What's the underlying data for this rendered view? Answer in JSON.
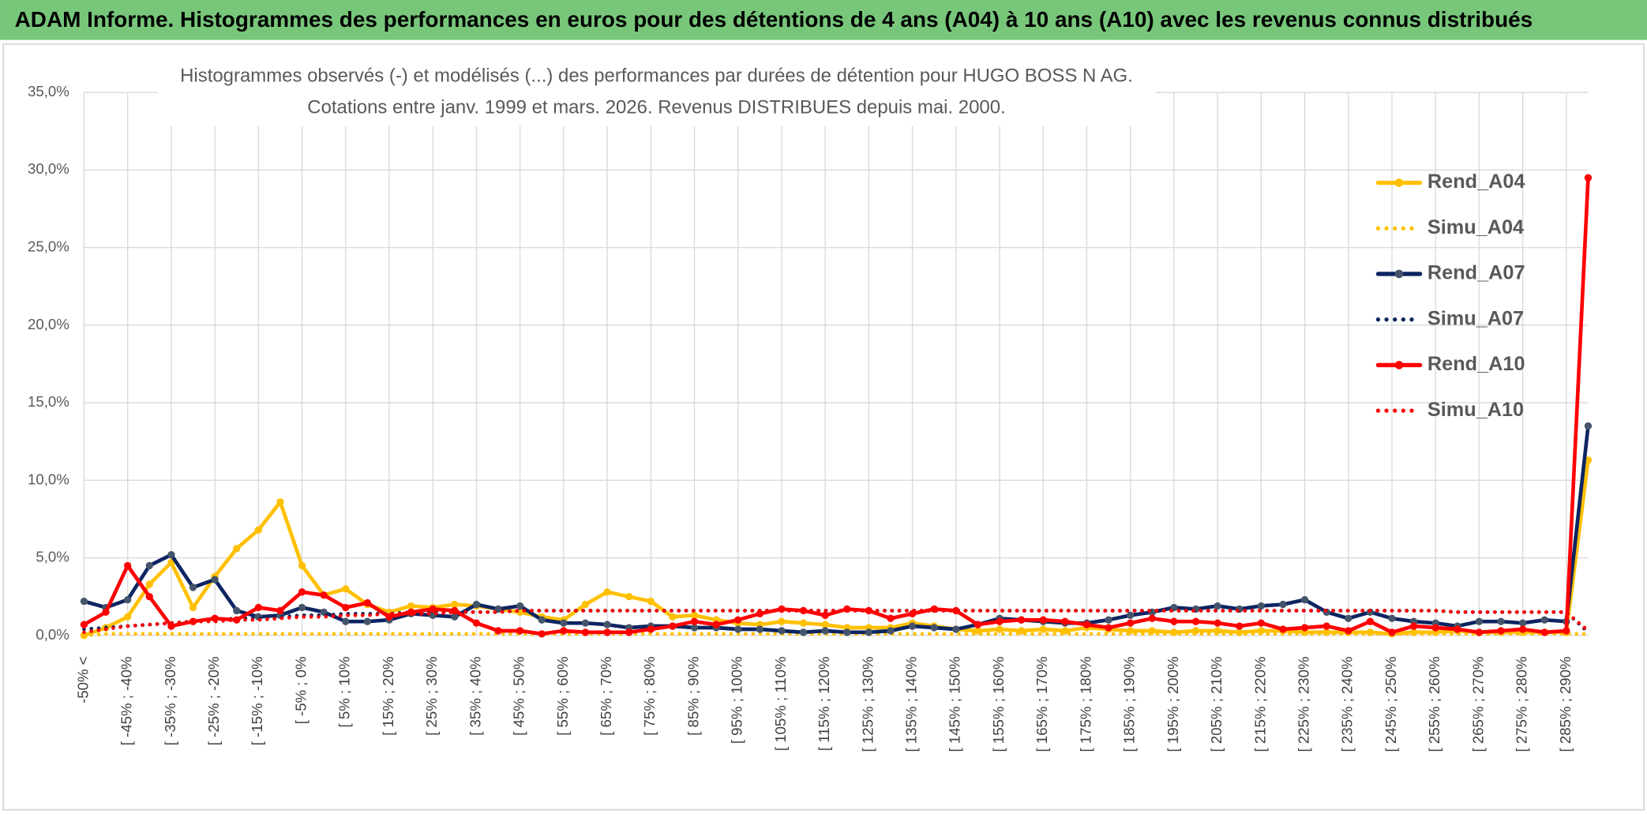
{
  "header": {
    "title": "ADAM Informe. Histogrammes des performances en euros pour des détentions de 4 ans (A04) à 10 ans (A10) avec les revenus connus distribués"
  },
  "chart_data": {
    "type": "line",
    "title": "Histogrammes observés (-) et modélisés (...) des performances par durées de détention pour HUGO BOSS N AG.",
    "subtitle": "Cotations entre janv. 1999 et mars. 2026. Revenus DISTRIBUES depuis mai. 2000.",
    "categories": [
      "-50% <",
      null,
      "[ -45% ; -40%",
      null,
      "[ -35% ; -30%",
      null,
      "[ -25% ; -20%",
      null,
      "[ -15% ; -10%",
      null,
      "[ -5% ; 0%",
      null,
      "[ 5% ; 10%",
      null,
      "[ 15% ; 20%",
      null,
      "[ 25% ; 30%",
      null,
      "[ 35% ; 40%",
      null,
      "[ 45% ; 50%",
      null,
      "[ 55% ; 60%",
      null,
      "[ 65% ; 70%",
      null,
      "[ 75% ; 80%",
      null,
      "[ 85% ; 90%",
      null,
      "[ 95% ; 100%",
      null,
      "[ 105% ; 110%",
      null,
      "[ 115% ; 120%",
      null,
      "[ 125% ; 130%",
      null,
      "[ 135% ; 140%",
      null,
      "[ 145% ; 150%",
      null,
      "[ 155% ; 160%",
      null,
      "[ 165% ; 170%",
      null,
      "[ 175% ; 180%",
      null,
      "[ 185% ; 190%",
      null,
      "[ 195% ; 200%",
      null,
      "[ 205% ; 210%",
      null,
      "[ 215% ; 220%",
      null,
      "[ 225% ; 230%",
      null,
      "[ 235% ; 240%",
      null,
      "[ 245% ; 250%",
      null,
      "[ 255% ; 260%",
      null,
      "[ 265% ; 270%",
      null,
      "[ 275% ; 280%",
      null,
      "[ 285% ; 290%",
      null
    ],
    "ylim": [
      0,
      35
    ],
    "yticks": [
      {
        "value": 0,
        "label": "0,0%"
      },
      {
        "value": 5,
        "label": "5,0%"
      },
      {
        "value": 10,
        "label": "10,0%"
      },
      {
        "value": 15,
        "label": "15,0%"
      },
      {
        "value": 20,
        "label": "20,0%"
      },
      {
        "value": 25,
        "label": "25,0%"
      },
      {
        "value": 30,
        "label": "30,0%"
      },
      {
        "value": 35,
        "label": "35,0%"
      }
    ],
    "grid": true,
    "legend": "right",
    "series": [
      {
        "name": "Rend_A04",
        "color": "#ffc000",
        "style": "solid",
        "values": [
          0.0,
          0.5,
          1.2,
          3.3,
          4.7,
          1.8,
          3.8,
          5.6,
          6.8,
          8.6,
          4.5,
          2.6,
          3.0,
          2.0,
          1.5,
          1.9,
          1.8,
          2.0,
          1.9,
          1.7,
          1.5,
          1.2,
          1.0,
          2.0,
          2.8,
          2.5,
          2.2,
          1.2,
          1.3,
          1.0,
          0.8,
          0.7,
          0.9,
          0.8,
          0.7,
          0.5,
          0.5,
          0.5,
          0.8,
          0.6,
          0.4,
          0.3,
          0.4,
          0.3,
          0.4,
          0.3,
          0.5,
          0.4,
          0.3,
          0.3,
          0.2,
          0.3,
          0.3,
          0.2,
          0.3,
          0.3,
          0.2,
          0.2,
          0.2,
          0.2,
          0.1,
          0.2,
          0.2,
          0.3,
          0.2,
          0.2,
          0.2,
          0.2,
          0.2,
          11.3
        ]
      },
      {
        "name": "Simu_A04",
        "color": "#ffc000",
        "style": "dotted",
        "values": [
          0.0,
          0.1,
          0.1,
          0.1,
          0.1,
          0.1,
          0.1,
          0.1,
          0.1,
          0.1,
          0.1,
          0.1,
          0.1,
          0.1,
          0.1,
          0.1,
          0.1,
          0.1,
          0.1,
          0.1,
          0.1,
          0.1,
          0.1,
          0.1,
          0.1,
          0.1,
          0.1,
          0.1,
          0.1,
          0.1,
          0.1,
          0.1,
          0.1,
          0.1,
          0.1,
          0.1,
          0.1,
          0.1,
          0.1,
          0.1,
          0.1,
          0.1,
          0.1,
          0.1,
          0.1,
          0.1,
          0.1,
          0.1,
          0.1,
          0.1,
          0.1,
          0.1,
          0.1,
          0.1,
          0.1,
          0.1,
          0.1,
          0.1,
          0.1,
          0.1,
          0.1,
          0.1,
          0.1,
          0.1,
          0.1,
          0.1,
          0.1,
          0.1,
          0.1,
          0.1
        ]
      },
      {
        "name": "Rend_A07",
        "color": "#0c2461",
        "style": "solid",
        "values": [
          2.2,
          1.8,
          2.3,
          4.5,
          5.2,
          3.1,
          3.6,
          1.6,
          1.2,
          1.3,
          1.8,
          1.5,
          0.9,
          0.9,
          1.0,
          1.4,
          1.3,
          1.2,
          2.0,
          1.7,
          1.9,
          1.0,
          0.8,
          0.8,
          0.7,
          0.5,
          0.6,
          0.6,
          0.5,
          0.5,
          0.4,
          0.4,
          0.3,
          0.2,
          0.3,
          0.2,
          0.2,
          0.3,
          0.6,
          0.5,
          0.4,
          0.7,
          1.1,
          1.0,
          0.9,
          0.8,
          0.8,
          1.0,
          1.3,
          1.5,
          1.8,
          1.7,
          1.9,
          1.7,
          1.9,
          2.0,
          2.3,
          1.5,
          1.1,
          1.5,
          1.1,
          0.9,
          0.8,
          0.6,
          0.9,
          0.9,
          0.8,
          1.0,
          0.9,
          13.5
        ]
      },
      {
        "name": "Simu_A07",
        "color": "#0c2461",
        "style": "dotted",
        "values": [
          0.4,
          0.5,
          0.6,
          0.7,
          0.8,
          0.9,
          1.0,
          1.1,
          1.1,
          1.2,
          1.3,
          1.3,
          1.4,
          1.4,
          1.4,
          1.5,
          1.5,
          1.5,
          1.5,
          1.5,
          1.6,
          1.6,
          1.6,
          1.6,
          1.6,
          1.6,
          1.6,
          1.6,
          1.6,
          1.6,
          1.6,
          1.6,
          1.6,
          1.6,
          1.6,
          1.6,
          1.6,
          1.6,
          1.6,
          1.6,
          1.6,
          1.6,
          1.6,
          1.6,
          1.6,
          1.6,
          1.6,
          1.6,
          1.6,
          1.6,
          1.6,
          1.6,
          1.6,
          1.6,
          1.6,
          1.6,
          1.6,
          1.6,
          1.6,
          1.6,
          1.6,
          1.6,
          1.6,
          1.5,
          1.5,
          1.5,
          1.5,
          1.5,
          1.5,
          0.2
        ]
      },
      {
        "name": "Rend_A10",
        "color": "#ff0000",
        "style": "solid",
        "values": [
          0.7,
          1.5,
          4.5,
          2.5,
          0.6,
          0.9,
          1.1,
          1.0,
          1.8,
          1.6,
          2.8,
          2.6,
          1.8,
          2.1,
          1.2,
          1.5,
          1.7,
          1.6,
          0.8,
          0.3,
          0.3,
          0.1,
          0.3,
          0.2,
          0.2,
          0.2,
          0.4,
          0.6,
          0.9,
          0.7,
          1.0,
          1.4,
          1.7,
          1.6,
          1.3,
          1.7,
          1.6,
          1.1,
          1.4,
          1.7,
          1.6,
          0.7,
          0.9,
          1.0,
          1.0,
          0.9,
          0.7,
          0.5,
          0.8,
          1.1,
          0.9,
          0.9,
          0.8,
          0.6,
          0.8,
          0.4,
          0.5,
          0.6,
          0.3,
          0.9,
          0.2,
          0.6,
          0.5,
          0.4,
          0.2,
          0.3,
          0.4,
          0.2,
          0.3,
          29.5
        ]
      },
      {
        "name": "Simu_A10",
        "color": "#ff0000",
        "style": "dotted",
        "values": [
          0.2,
          0.4,
          0.6,
          0.7,
          0.8,
          0.9,
          0.9,
          1.0,
          1.0,
          1.1,
          1.2,
          1.2,
          1.3,
          1.3,
          1.4,
          1.4,
          1.4,
          1.5,
          1.5,
          1.5,
          1.6,
          1.6,
          1.6,
          1.6,
          1.6,
          1.6,
          1.6,
          1.6,
          1.6,
          1.6,
          1.6,
          1.6,
          1.6,
          1.6,
          1.6,
          1.6,
          1.6,
          1.6,
          1.6,
          1.6,
          1.6,
          1.6,
          1.6,
          1.6,
          1.6,
          1.6,
          1.6,
          1.6,
          1.6,
          1.6,
          1.6,
          1.6,
          1.6,
          1.6,
          1.6,
          1.6,
          1.6,
          1.6,
          1.6,
          1.6,
          1.6,
          1.6,
          1.6,
          1.5,
          1.5,
          1.5,
          1.5,
          1.5,
          1.5,
          0.3
        ]
      }
    ]
  }
}
